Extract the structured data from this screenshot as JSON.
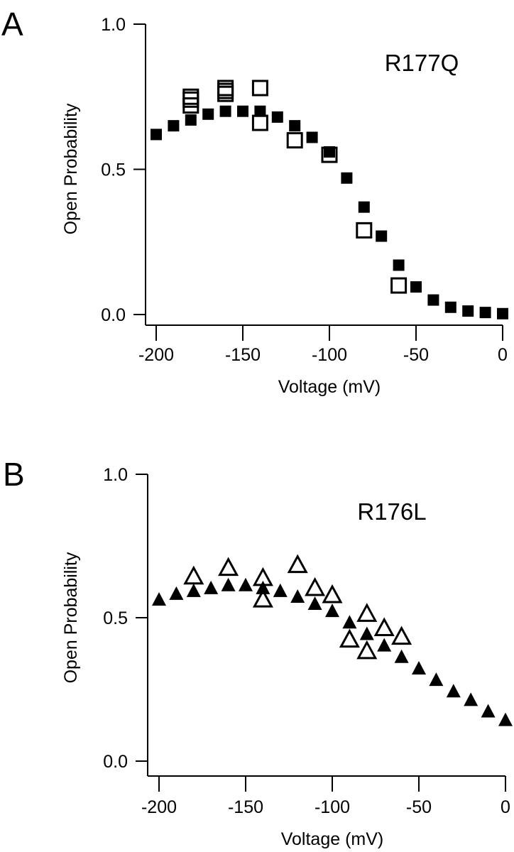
{
  "chart_data": [
    {
      "type": "scatter",
      "panel_label": "A",
      "title": "R177Q",
      "xlabel": "Voltage (mV)",
      "ylabel": "Open Probability",
      "xlim": [
        -200,
        0
      ],
      "ylim": [
        0,
        1
      ],
      "xticks": [
        -200,
        -150,
        -100,
        -50,
        0
      ],
      "xtick_labels": [
        "-200",
        "-150",
        "-100",
        "-50",
        "0"
      ],
      "yticks": [
        0,
        0.5,
        1
      ],
      "ytick_labels": [
        "0.0",
        "0.5",
        "1.0"
      ],
      "grid": false,
      "legend": "none",
      "marker": "square",
      "series": [
        {
          "name": "filled",
          "fill": "#000000",
          "x": [
            -200,
            -190,
            -180,
            -170,
            -160,
            -150,
            -140,
            -130,
            -120,
            -110,
            -100,
            -90,
            -80,
            -70,
            -60,
            -50,
            -40,
            -30,
            -20,
            -10,
            0
          ],
          "y": [
            0.62,
            0.65,
            0.67,
            0.69,
            0.7,
            0.7,
            0.7,
            0.68,
            0.65,
            0.61,
            0.56,
            0.47,
            0.37,
            0.27,
            0.17,
            0.095,
            0.05,
            0.025,
            0.012,
            0.007,
            0.003
          ]
        },
        {
          "name": "open",
          "fill": "none",
          "x": [
            -180,
            -180,
            -180,
            -160,
            -160,
            -160,
            -140,
            -140,
            -120,
            -100,
            -80,
            -60
          ],
          "y": [
            0.75,
            0.74,
            0.72,
            0.78,
            0.77,
            0.76,
            0.78,
            0.66,
            0.6,
            0.55,
            0.29,
            0.1
          ]
        }
      ]
    },
    {
      "type": "scatter",
      "panel_label": "B",
      "title": "R176L",
      "xlabel": "Voltage (mV)",
      "ylabel": "Open Probability",
      "xlim": [
        -200,
        0
      ],
      "ylim": [
        0,
        1
      ],
      "xticks": [
        -200,
        -150,
        -100,
        -50,
        0
      ],
      "xtick_labels": [
        "-200",
        "-150",
        "-100",
        "-50",
        "0"
      ],
      "yticks": [
        0,
        0.5,
        1
      ],
      "ytick_labels": [
        "0.0",
        "0.5",
        "1.0"
      ],
      "grid": false,
      "legend": "none",
      "marker": "triangle",
      "series": [
        {
          "name": "filled",
          "fill": "#000000",
          "x": [
            -200,
            -190,
            -180,
            -170,
            -160,
            -150,
            -140,
            -130,
            -120,
            -110,
            -100,
            -90,
            -80,
            -70,
            -60,
            -50,
            -40,
            -30,
            -20,
            -10,
            0
          ],
          "y": [
            0.56,
            0.58,
            0.59,
            0.6,
            0.61,
            0.61,
            0.6,
            0.59,
            0.57,
            0.545,
            0.52,
            0.48,
            0.44,
            0.4,
            0.36,
            0.32,
            0.28,
            0.24,
            0.21,
            0.17,
            0.14
          ]
        },
        {
          "name": "open",
          "fill": "none",
          "x": [
            -180,
            -160,
            -140,
            -140,
            -120,
            -110,
            -100,
            -90,
            -80,
            -80,
            -70,
            -60
          ],
          "y": [
            0.64,
            0.67,
            0.635,
            0.56,
            0.68,
            0.6,
            0.575,
            0.42,
            0.51,
            0.38,
            0.46,
            0.43
          ]
        }
      ]
    }
  ]
}
